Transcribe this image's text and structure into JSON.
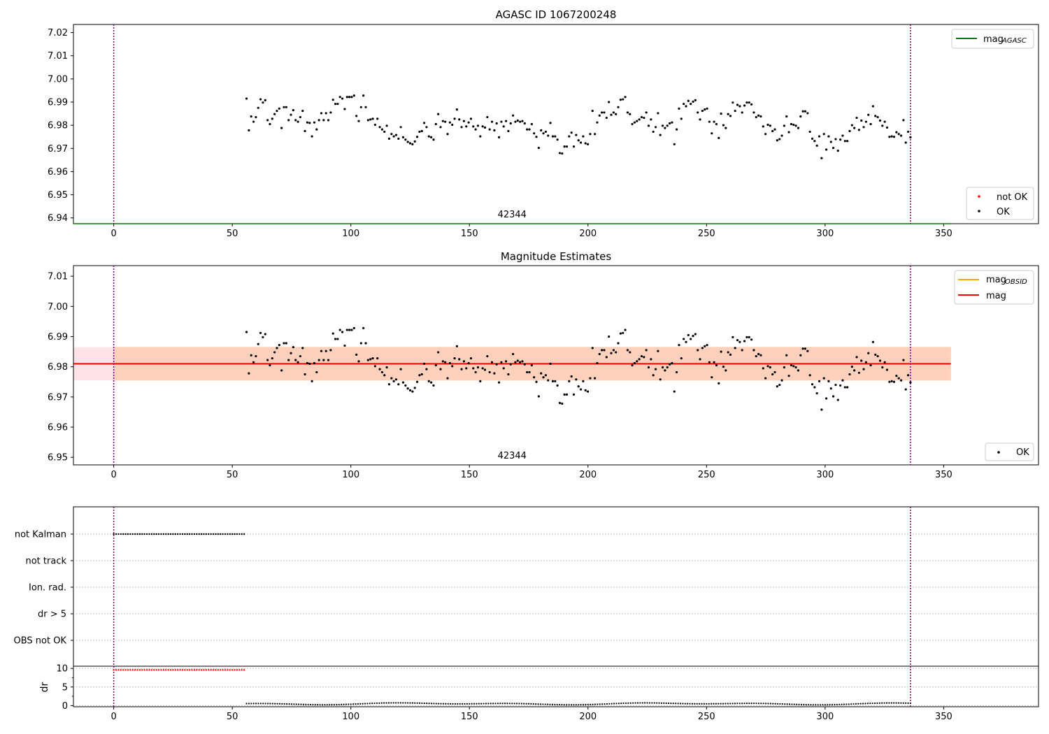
{
  "chart_data": [
    {
      "type": "scatter",
      "title": "AGASC ID 1067200248",
      "xlim": [
        -17,
        390
      ],
      "ylim": [
        6.9375,
        7.0235
      ],
      "xticks": [
        0,
        50,
        100,
        150,
        200,
        250,
        300,
        350
      ],
      "yticks": [
        6.94,
        6.95,
        6.96,
        6.97,
        6.98,
        6.99,
        7.0,
        7.01,
        7.02
      ],
      "vlines": [
        0,
        336
      ],
      "obsid_label": "42344",
      "obsid_label_x": 168,
      "mag_agasc": 6.9375,
      "mag_agasc_range": [
        -17,
        353
      ],
      "legend_lines": [
        {
          "label": "mag",
          "sub": "AGASC",
          "color": "#008000"
        }
      ],
      "legend_points": [
        {
          "label": "not OK",
          "color": "#ff0000"
        },
        {
          "label": "OK",
          "color": "#000000"
        }
      ],
      "series_ref": "mag_series"
    },
    {
      "type": "scatter",
      "title": "Magnitude Estimates",
      "xlim": [
        -17,
        390
      ],
      "ylim": [
        6.9475,
        7.0135
      ],
      "xticks": [
        0,
        50,
        100,
        150,
        200,
        250,
        300,
        350
      ],
      "yticks": [
        6.95,
        6.96,
        6.97,
        6.98,
        6.99,
        7.0,
        7.01
      ],
      "vlines": [
        0,
        336
      ],
      "obsid_label": "42344",
      "obsid_label_x": 168,
      "mag": 6.981,
      "mag_band": [
        6.9755,
        6.9865
      ],
      "mag_range": [
        -17,
        353
      ],
      "legend_lines": [
        {
          "label": "mag",
          "sub": "OBSID",
          "color": "#ffa500"
        },
        {
          "label": "mag",
          "sub": "",
          "color": "#ff0000"
        }
      ],
      "legend_points": [
        {
          "label": "OK",
          "color": "#000000"
        }
      ],
      "series_ref": "mag_series"
    },
    {
      "type": "scatter",
      "title": "",
      "xlim": [
        -17,
        390
      ],
      "categories": [
        "not Kalman",
        "not track",
        "Ion. rad.",
        "dr > 5",
        "OBS not OK"
      ],
      "flag_not_kalman_x": [
        0,
        55
      ],
      "vlines": [
        0,
        336
      ]
    },
    {
      "type": "scatter",
      "title": "",
      "ylabel": "dr",
      "xlim": [
        -17,
        390
      ],
      "ylim": [
        -0.3,
        10.6
      ],
      "xticks": [
        0,
        50,
        100,
        150,
        200,
        250,
        300,
        350
      ],
      "yticks": [
        0,
        5,
        10
      ],
      "vlines": [
        0,
        336
      ],
      "red_dr": 9.6,
      "red_x": [
        0,
        55
      ]
    }
  ],
  "mag_series": {
    "x_start": 56,
    "x_end": 336,
    "y": [
      6.9915,
      6.9778,
      6.9838,
      6.9815,
      6.9835,
      6.9875,
      6.9912,
      6.9898,
      6.9908,
      6.9822,
      6.9805,
      6.9828,
      6.9848,
      6.9862,
      6.9872,
      6.9788,
      6.9878,
      6.9878,
      6.9822,
      6.9845,
      6.9865,
      6.9822,
      6.9815,
      6.9835,
      6.9862,
      6.9775,
      6.9812,
      6.981,
      6.9752,
      6.9812,
      6.9782,
      6.9822,
      6.9852,
      6.9822,
      6.9852,
      6.9822,
      6.9855,
      6.991,
      6.9892,
      6.9892,
      6.9922,
      6.9915,
      6.987,
      6.9922,
      6.9922,
      6.9922,
      6.9928,
      6.984,
      6.9818,
      6.9878,
      6.9928,
      6.9878,
      6.9822,
      6.9825,
      6.9828,
      6.9802,
      6.9828,
      6.9792,
      6.9782,
      6.9772,
      6.9798,
      6.9742,
      6.9762,
      6.9752,
      6.9758,
      6.9742,
      6.9792,
      6.9748,
      6.9738,
      6.9728,
      6.9722,
      6.9718,
      6.973,
      6.975,
      6.9772,
      6.9775,
      6.981,
      6.9792,
      6.9752,
      6.9748,
      6.9738,
      6.9805,
      6.9848,
      6.9792,
      6.9818,
      6.9815,
      6.9762,
      6.9812,
      6.9802,
      6.9828,
      6.9868,
      6.9825,
      6.9792,
      6.9818,
      6.9795,
      6.9812,
      6.9828,
      6.9795,
      6.9782,
      6.9798,
      6.9752,
      6.9795,
      6.979,
      6.9835,
      6.9782,
      6.9815,
      6.9778,
      6.9808,
      6.9748,
      6.9815,
      6.9795,
      6.9818,
      6.9775,
      6.9808,
      6.9842,
      6.9815,
      6.982,
      6.9815,
      6.9818,
      6.9808,
      6.9782,
      6.9782,
      6.9805,
      6.9765,
      6.975,
      6.9702,
      6.9778,
      6.9765,
      6.9772,
      6.9755,
      6.981,
      6.9752,
      6.9752,
      6.9738,
      6.968,
      6.9678,
      6.9708,
      6.9708,
      6.9752,
      6.9768,
      6.9708,
      6.9758,
      6.9735,
      6.9725,
      6.9752,
      6.9722,
      6.9718,
      6.9762,
      6.9862,
      6.9762,
      6.9812,
      6.9842,
      6.9855,
      6.9855,
      6.9832,
      6.99,
      6.9845,
      6.9855,
      6.9848,
      6.9878,
      6.991,
      6.9912,
      6.9922,
      6.9855,
      6.9848,
      6.9805,
      6.9812,
      6.9818,
      6.9825,
      6.9835,
      6.9832,
      6.9855,
      6.9798,
      6.9825,
      6.9772,
      6.9792,
      6.9852,
      6.9758,
      6.9798,
      6.9788,
      6.9798,
      6.9808,
      6.9812,
      6.9718,
      6.9782,
      6.9872,
      6.9828,
      6.9892,
      6.9882,
      6.9905,
      6.9892,
      6.9902,
      6.9908,
      6.9855,
      6.9825,
      6.9862,
      6.9868,
      6.9872,
      6.9815,
      6.9765,
      6.9815,
      6.9805,
      6.9745,
      6.985,
      6.98,
      6.9788,
      6.9848,
      6.984,
      6.9898,
      6.9862,
      6.9888,
      6.9882,
      6.9855,
      6.9885,
      6.9898,
      6.9898,
      6.989,
      6.9855,
      6.9835,
      6.9842,
      6.9838,
      6.9795,
      6.9762,
      6.9802,
      6.9798,
      6.9775,
      6.9782,
      6.9735,
      6.974,
      6.9755,
      6.9798,
      6.9838,
      6.977,
      6.9805,
      6.9802,
      6.9798,
      6.9788,
      6.9838,
      6.986,
      6.986,
      6.9852,
      6.9772,
      6.9742,
      6.9732,
      6.9712,
      6.9752,
      6.9658,
      6.9762,
      6.9695,
      6.9752,
      6.9728,
      6.9702,
      6.974,
      6.969,
      6.9738,
      6.9755,
      6.9732,
      6.9732,
      6.9775,
      6.98,
      6.9788,
      6.9832,
      6.978,
      6.982,
      6.9792,
      6.9815,
      6.9845,
      6.9805,
      6.9882,
      6.984,
      6.9835,
      6.982,
      6.9798,
      6.9815,
      6.979,
      6.975,
      6.9752,
      6.975,
      6.977,
      6.9762,
      6.9755,
      6.9822,
      6.9725,
      6.9772,
      6.9748
    ]
  },
  "dr_series": {
    "x_start": 56,
    "x_end": 336,
    "base": 0.5,
    "amplitude": 0.3
  },
  "axis": {
    "categories_label_font": "12px"
  }
}
